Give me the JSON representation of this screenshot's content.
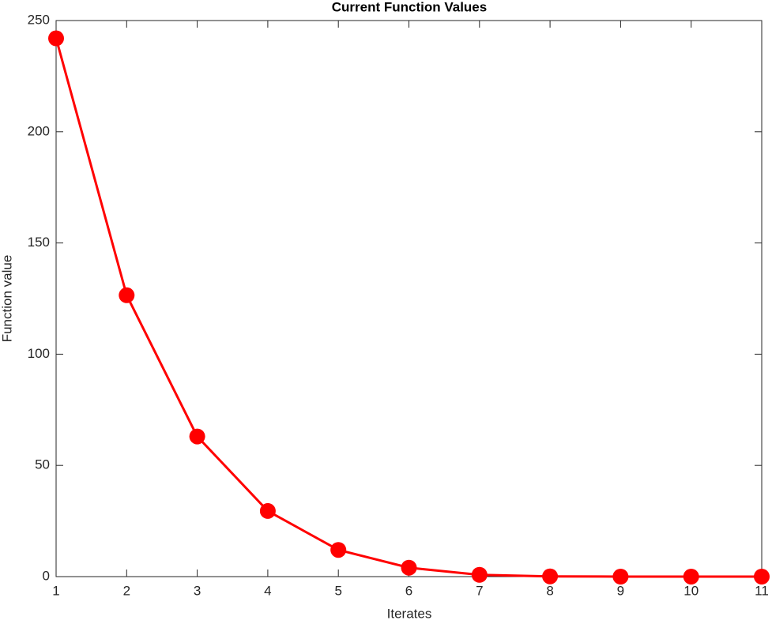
{
  "chart_data": {
    "type": "line",
    "title": "Current Function Values",
    "xlabel": "Iterates",
    "ylabel": "Function value",
    "x": [
      1,
      2,
      3,
      4,
      5,
      6,
      7,
      8,
      9,
      10,
      11
    ],
    "series": [
      {
        "name": "Function value",
        "color": "#ff0000",
        "values": [
          242,
          126.5,
          63,
          29.5,
          12,
          4,
          0.8,
          0.1,
          0,
          0,
          0
        ]
      }
    ],
    "xlim": [
      1,
      11
    ],
    "xticks": [
      1,
      2,
      3,
      4,
      5,
      6,
      7,
      8,
      9,
      10,
      11
    ],
    "ylim": [
      0,
      250
    ],
    "yticks": [
      0,
      50,
      100,
      150,
      200,
      250
    ],
    "grid": false
  }
}
